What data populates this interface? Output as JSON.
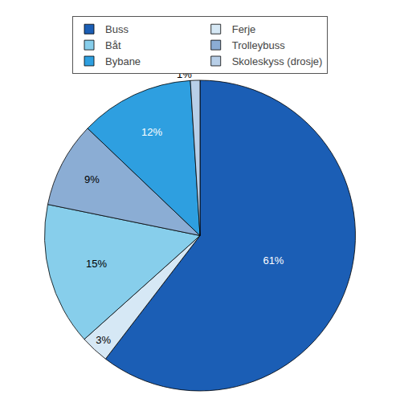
{
  "chart_data": {
    "type": "pie",
    "categories": [
      "Buss",
      "Ferje",
      "Båt",
      "Trolleybuss",
      "Bybane",
      "Skoleskyss (drosje)"
    ],
    "values": [
      61,
      3,
      15,
      9,
      12,
      1
    ],
    "value_labels": [
      "61%",
      "3%",
      "15%",
      "9%",
      "12%",
      "1%"
    ],
    "colors": [
      "#1B5EB5",
      "#D6E8F5",
      "#87CEEB",
      "#8BADD4",
      "#2E9FE0",
      "#B8CFE8"
    ],
    "data_labels": true,
    "legend": "top"
  }
}
